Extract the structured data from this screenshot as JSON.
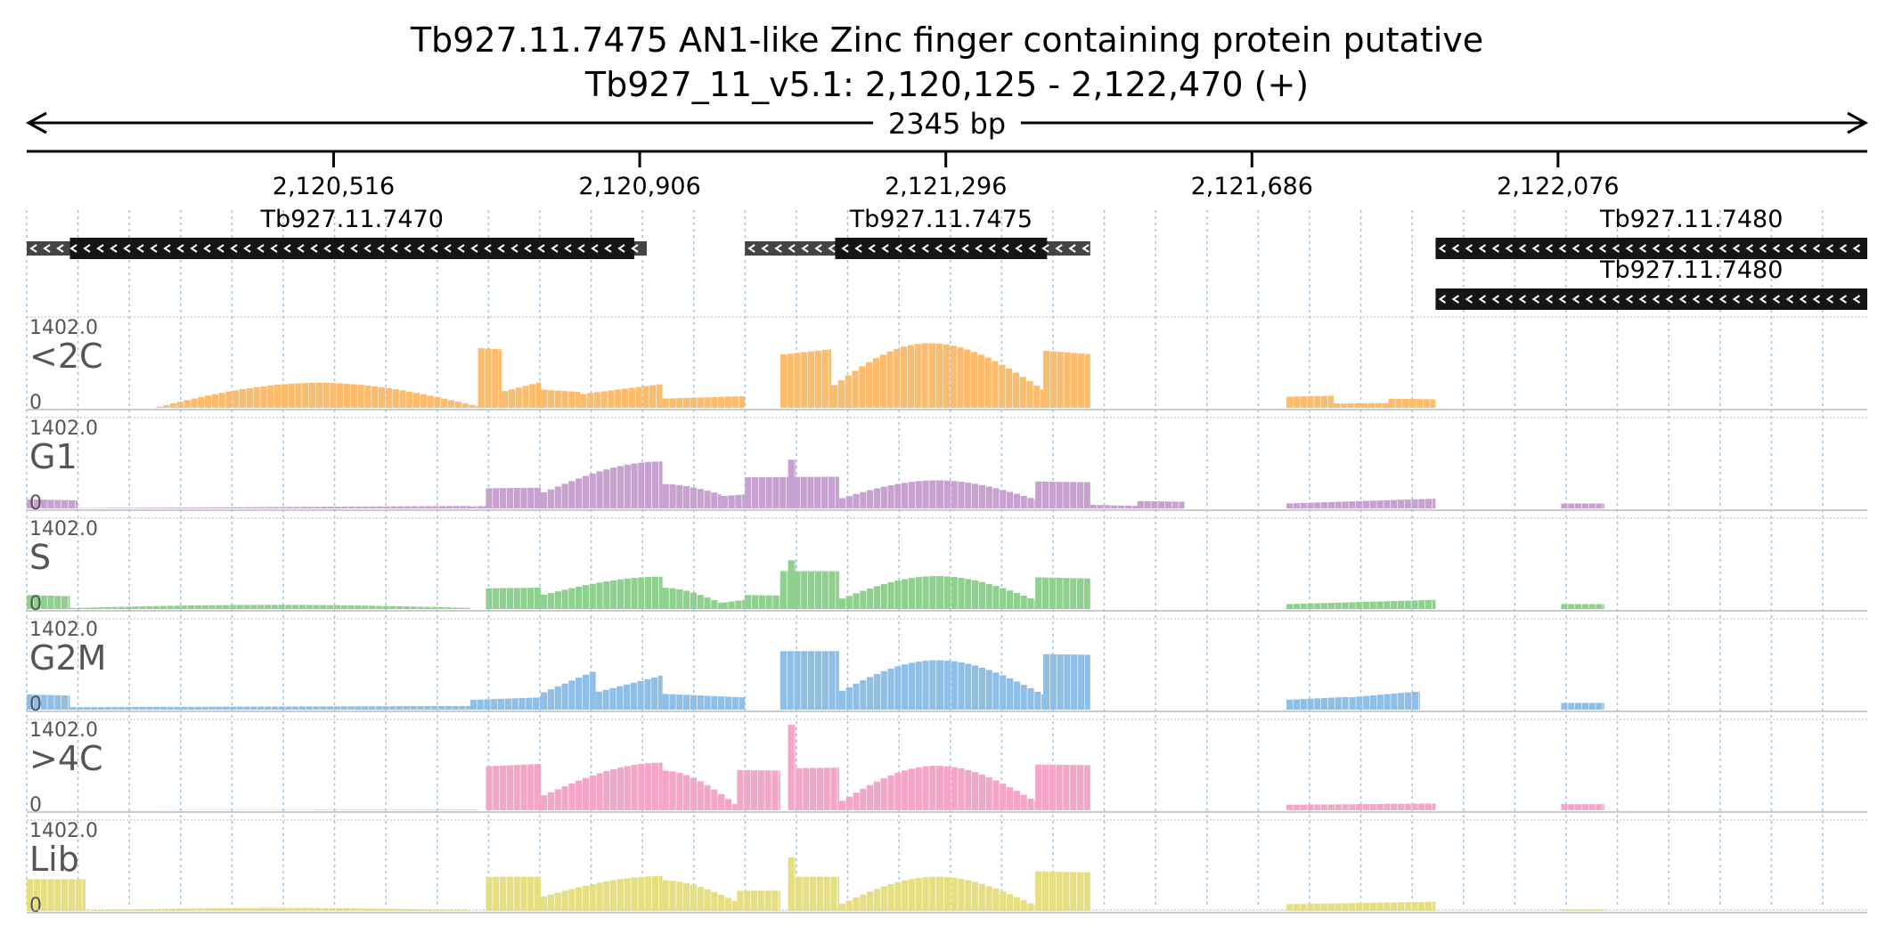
{
  "header": {
    "title": "Tb927.11.7475  AN1-like Zinc finger containing protein  putative",
    "subtitle": "Tb927_11_v5.1: 2,120,125 - 2,122,470 (+)",
    "span_label": "2345 bp"
  },
  "chart_data": {
    "type": "area",
    "title": "Tb927.11.7475  AN1-like Zinc finger containing protein  putative",
    "subtitle": "Tb927_11_v5.1: 2,120,125 - 2,122,470 (+)",
    "region": {
      "chrom": "Tb927_11_v5.1",
      "start": 2120125,
      "end": 2122470,
      "strand": "+"
    },
    "span_label": "2345 bp",
    "ruler_ticks": [
      2120516,
      2120906,
      2121296,
      2121686,
      2122076
    ],
    "ruler_tick_labels": [
      "2,120,516",
      "2,120,906",
      "2,121,296",
      "2,121,686",
      "2,122,076"
    ],
    "gridlines": "dotted every ~60 bp",
    "genes": [
      {
        "name": "Tb927.11.7470",
        "strand": "-",
        "utr": [
          2120125,
          2120915
        ],
        "cds": [
          2120180,
          2120899
        ],
        "row": 0
      },
      {
        "name": "Tb927.11.7475",
        "strand": "-",
        "utr": [
          2121040,
          2121480
        ],
        "cds": [
          2121155,
          2121425
        ],
        "row": 0
      },
      {
        "name": "Tb927.11.7480",
        "strand": "-",
        "utr": [
          2121920,
          2122470
        ],
        "cds": [
          2121920,
          2122470
        ],
        "row": 0
      },
      {
        "name": "Tb927.11.7480",
        "strand": "-",
        "utr": [
          2121920,
          2122470
        ],
        "cds": [
          2121920,
          2122470
        ],
        "row": 1
      }
    ],
    "ymax_label": "1402.0",
    "ymin_label": "0",
    "ylim": [
      0,
      1402
    ],
    "track_profile_note": "coverage approximated per segment: [start_bp, end_bp, start_value, end_value, shape]",
    "series": [
      {
        "name": "<2C",
        "color": "#fdbb6c",
        "segments": [
          [
            2120125,
            2120290,
            0,
            0,
            "lin"
          ],
          [
            2120290,
            2120700,
            5,
            420,
            "hump"
          ],
          [
            2120700,
            2120695,
            0,
            0,
            "lin"
          ],
          [
            2120700,
            2120730,
            980,
            960,
            "lin"
          ],
          [
            2120730,
            2120780,
            260,
            420,
            "step"
          ],
          [
            2120780,
            2120830,
            300,
            260,
            "step"
          ],
          [
            2120830,
            2120935,
            220,
            390,
            "step"
          ],
          [
            2120935,
            2121040,
            150,
            190,
            "step"
          ],
          [
            2121085,
            2121150,
            870,
            960,
            "lin"
          ],
          [
            2121150,
            2121275,
            330,
            1060,
            "rise"
          ],
          [
            2121275,
            2121420,
            1060,
            300,
            "fall"
          ],
          [
            2121420,
            2121480,
            940,
            880,
            "lin"
          ],
          [
            2121730,
            2121790,
            180,
            200,
            "lin"
          ],
          [
            2121790,
            2121860,
            70,
            80,
            "lin"
          ],
          [
            2121860,
            2121920,
            150,
            140,
            "lin"
          ]
        ]
      },
      {
        "name": "G1",
        "color": "#c7a1cf",
        "segments": [
          [
            2120125,
            2120190,
            150,
            130,
            "lin"
          ],
          [
            2120190,
            2120690,
            5,
            40,
            "lin"
          ],
          [
            2120690,
            2120710,
            30,
            40,
            "lin"
          ],
          [
            2120710,
            2120780,
            330,
            340,
            "lin"
          ],
          [
            2120780,
            2120935,
            240,
            770,
            "rise"
          ],
          [
            2120935,
            2121010,
            400,
            230,
            "fall"
          ],
          [
            2121010,
            2121040,
            200,
            230,
            "lin"
          ],
          [
            2121040,
            2121160,
            510,
            520,
            "lin"
          ],
          [
            2121095,
            2121105,
            800,
            800,
            "lin"
          ],
          [
            2121160,
            2121285,
            150,
            460,
            "rise"
          ],
          [
            2121285,
            2121410,
            460,
            150,
            "fall"
          ],
          [
            2121410,
            2121480,
            440,
            430,
            "lin"
          ],
          [
            2121480,
            2121540,
            60,
            40,
            "lin"
          ],
          [
            2121540,
            2121600,
            120,
            110,
            "lin"
          ],
          [
            2121730,
            2121920,
            80,
            160,
            "lin"
          ],
          [
            2122080,
            2122135,
            80,
            80,
            "lin"
          ]
        ]
      },
      {
        "name": "S",
        "color": "#8fd08e",
        "segments": [
          [
            2120125,
            2120180,
            230,
            210,
            "lin"
          ],
          [
            2120180,
            2120690,
            15,
            70,
            "hump"
          ],
          [
            2120710,
            2120780,
            340,
            350,
            "lin"
          ],
          [
            2120780,
            2120935,
            220,
            530,
            "rise"
          ],
          [
            2120935,
            2121010,
            350,
            100,
            "fall"
          ],
          [
            2121010,
            2121040,
            100,
            150,
            "lin"
          ],
          [
            2121040,
            2121085,
            230,
            220,
            "lin"
          ],
          [
            2121085,
            2121160,
            620,
            620,
            "lin"
          ],
          [
            2121095,
            2121105,
            800,
            800,
            "lin"
          ],
          [
            2121160,
            2121285,
            150,
            540,
            "rise"
          ],
          [
            2121285,
            2121410,
            540,
            150,
            "fall"
          ],
          [
            2121410,
            2121480,
            520,
            500,
            "lin"
          ],
          [
            2121730,
            2121920,
            80,
            150,
            "lin"
          ],
          [
            2122080,
            2122135,
            80,
            80,
            "lin"
          ]
        ]
      },
      {
        "name": "G2M",
        "color": "#8fbfe6",
        "segments": [
          [
            2120125,
            2120180,
            250,
            230,
            "lin"
          ],
          [
            2120180,
            2120690,
            40,
            60,
            "lin"
          ],
          [
            2120690,
            2120780,
            160,
            200,
            "lin"
          ],
          [
            2120780,
            2120850,
            260,
            640,
            "lin"
          ],
          [
            2120850,
            2120935,
            280,
            560,
            "lin"
          ],
          [
            2120935,
            2121040,
            260,
            200,
            "lin"
          ],
          [
            2121085,
            2121160,
            960,
            960,
            "lin"
          ],
          [
            2121160,
            2121285,
            280,
            810,
            "rise"
          ],
          [
            2121285,
            2121420,
            810,
            250,
            "fall"
          ],
          [
            2121420,
            2121480,
            910,
            900,
            "lin"
          ],
          [
            2121730,
            2121810,
            160,
            210,
            "lin"
          ],
          [
            2121810,
            2121900,
            200,
            300,
            "lin"
          ],
          [
            2122080,
            2122135,
            110,
            110,
            "lin"
          ]
        ]
      },
      {
        "name": ">4C",
        "color": "#f3a6c8",
        "segments": [
          [
            2120125,
            2120700,
            0,
            10,
            "lin"
          ],
          [
            2120710,
            2120780,
            720,
            760,
            "lin"
          ],
          [
            2120780,
            2120935,
            220,
            780,
            "rise"
          ],
          [
            2120935,
            2121030,
            650,
            80,
            "fall"
          ],
          [
            2121030,
            2121085,
            660,
            650,
            "lin"
          ],
          [
            2121095,
            2121105,
            1402,
            1402,
            "lin"
          ],
          [
            2121105,
            2121160,
            690,
            700,
            "lin"
          ],
          [
            2121160,
            2121285,
            120,
            730,
            "rise"
          ],
          [
            2121285,
            2121410,
            730,
            150,
            "fall"
          ],
          [
            2121410,
            2121480,
            750,
            740,
            "lin"
          ],
          [
            2121730,
            2121920,
            90,
            110,
            "lin"
          ],
          [
            2122080,
            2122135,
            100,
            100,
            "lin"
          ]
        ]
      },
      {
        "name": "Lib",
        "color": "#e6df82",
        "segments": [
          [
            2120125,
            2120200,
            520,
            520,
            "lin"
          ],
          [
            2120200,
            2120690,
            10,
            50,
            "hump"
          ],
          [
            2120710,
            2120780,
            560,
            560,
            "lin"
          ],
          [
            2120780,
            2120935,
            220,
            570,
            "rise"
          ],
          [
            2120935,
            2121030,
            500,
            150,
            "fall"
          ],
          [
            2121030,
            2121085,
            330,
            330,
            "lin"
          ],
          [
            2121095,
            2121105,
            880,
            880,
            "lin"
          ],
          [
            2121105,
            2121160,
            560,
            560,
            "lin"
          ],
          [
            2121160,
            2121285,
            90,
            560,
            "rise"
          ],
          [
            2121285,
            2121410,
            560,
            90,
            "fall"
          ],
          [
            2121410,
            2121480,
            650,
            630,
            "lin"
          ],
          [
            2121730,
            2121920,
            110,
            150,
            "lin"
          ],
          [
            2122080,
            2122135,
            20,
            20,
            "lin"
          ]
        ]
      }
    ]
  }
}
